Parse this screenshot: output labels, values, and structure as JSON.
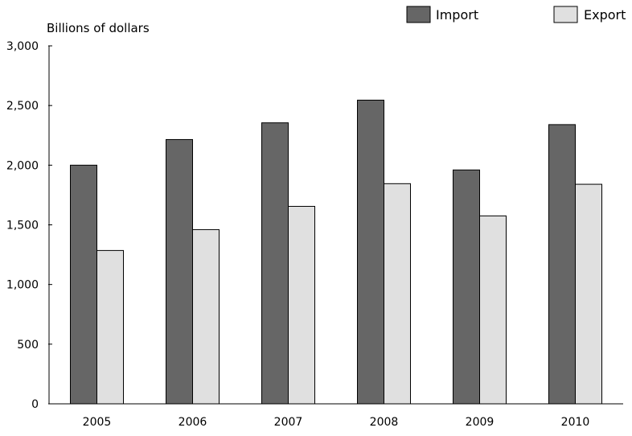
{
  "chart_data": {
    "type": "bar",
    "title": "",
    "xlabel": "",
    "ylabel": "Billions of dollars",
    "ylim": [
      0,
      3000
    ],
    "yticks": [
      0,
      500,
      1000,
      1500,
      2000,
      2500,
      3000
    ],
    "ytick_labels": [
      "0",
      "500",
      "1,000",
      "1,500",
      "2,000",
      "2,500",
      "3,000"
    ],
    "categories": [
      "2005",
      "2006",
      "2007",
      "2008",
      "2009",
      "2010"
    ],
    "series": [
      {
        "name": "Import",
        "color": "#666666",
        "values": [
          2000,
          2215,
          2355,
          2545,
          1960,
          2340
        ]
      },
      {
        "name": "Export",
        "color": "#e0e0e0",
        "values": [
          1285,
          1460,
          1655,
          1845,
          1575,
          1840
        ]
      }
    ],
    "grid": false,
    "legend_position": "top-right"
  }
}
